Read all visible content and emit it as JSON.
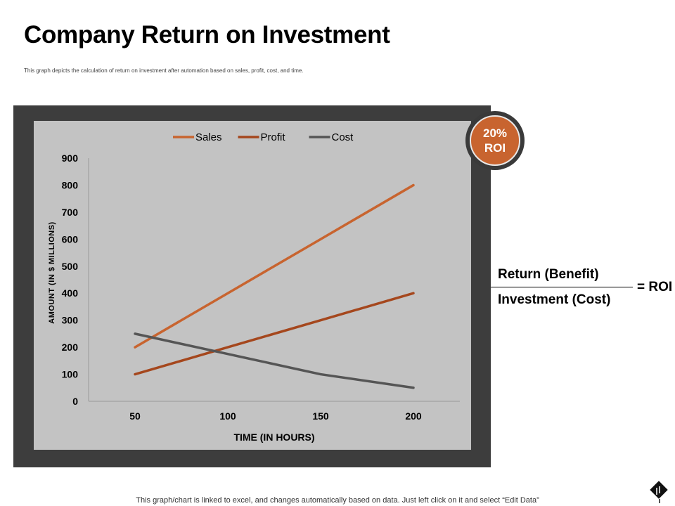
{
  "slide": {
    "title": "Company Return on Investment",
    "subtitle": "This graph depicts the calculation of return on investment after automation based on sales, profit, cost, and time.",
    "roi_badge": {
      "value": "20%",
      "label": "ROI"
    },
    "formula": {
      "numerator": "Return (Benefit)",
      "denominator": "Investment (Cost)",
      "result": "= ROI"
    },
    "footer": "This graph/chart is linked to excel, and changes automatically based on data. Just left click on it and select “Edit Data”"
  },
  "chart_data": {
    "type": "line",
    "categories": [
      "50",
      "100",
      "150",
      "200"
    ],
    "series": [
      {
        "name": "Sales",
        "color": "#c8642f",
        "values": [
          200,
          400,
          600,
          800
        ]
      },
      {
        "name": "Profit",
        "color": "#a5471d",
        "values": [
          100,
          200,
          300,
          400
        ]
      },
      {
        "name": "Cost",
        "color": "#555555",
        "values": [
          250,
          175,
          100,
          50
        ]
      }
    ],
    "xlabel": "TIME (IN HOURS)",
    "ylabel": "AMOUNT (IN $ MILLIONS)",
    "ylim": [
      0,
      900
    ],
    "yticks": [
      0,
      100,
      200,
      300,
      400,
      500,
      600,
      700,
      800,
      900
    ],
    "grid": false,
    "legend_position": "top"
  }
}
